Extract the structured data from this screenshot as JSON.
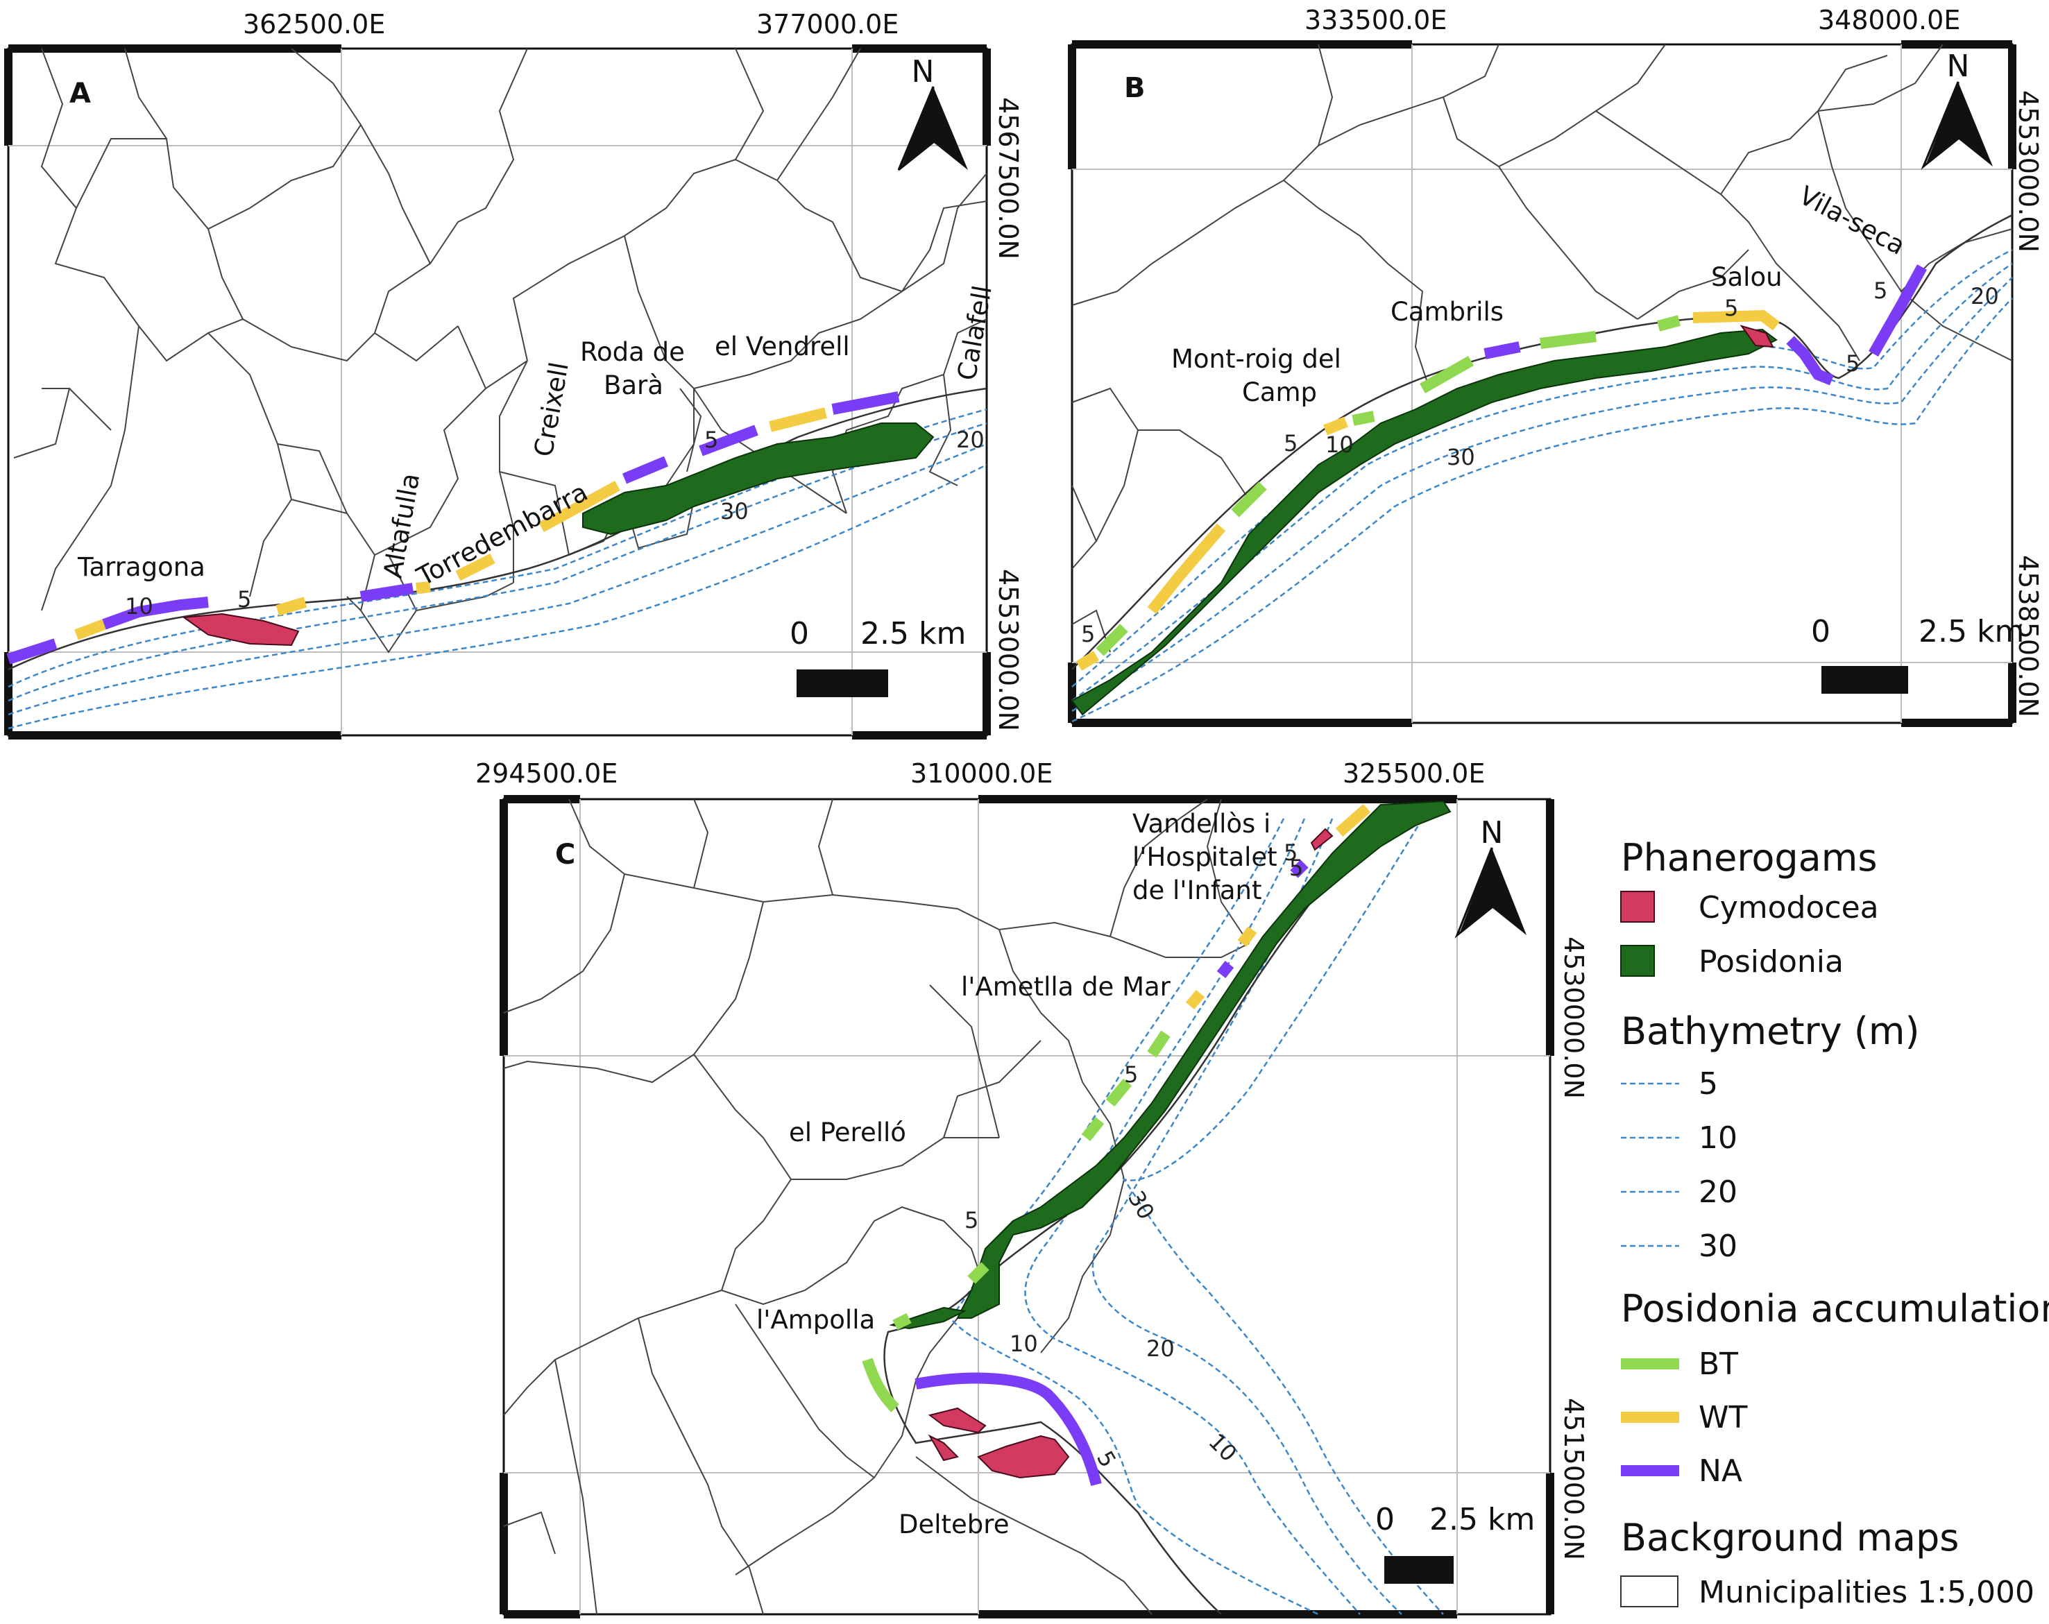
{
  "panels": {
    "A": {
      "letter": "A",
      "x_ticks": [
        "362500.0E",
        "377000.0E"
      ],
      "y_ticks": [
        "4567500.0N",
        "4553000.0N"
      ],
      "places": [
        "Tarragona",
        "Altafulla",
        "Torredembarra",
        "Creixell",
        "Roda de",
        "Barà",
        "el Vendrell",
        "Calafell"
      ],
      "depths": [
        "10",
        "5",
        "5",
        "20",
        "30"
      ],
      "scale": {
        "zero": "0",
        "dist": "2.5 km"
      },
      "north": "N"
    },
    "B": {
      "letter": "B",
      "x_ticks": [
        "333500.0E",
        "348000.0E"
      ],
      "y_ticks": [
        "4553000.0N",
        "4538500.0N"
      ],
      "places": [
        "Mont-roig del",
        "Camp",
        "Cambrils",
        "Salou",
        "Vila-seca"
      ],
      "depths": [
        "5",
        "10",
        "30",
        "5",
        "5",
        "5",
        "20",
        "5"
      ],
      "scale": {
        "zero": "0",
        "dist": "2.5 km"
      },
      "north": "N"
    },
    "C": {
      "letter": "C",
      "x_ticks": [
        "294500.0E",
        "310000.0E",
        "325500.0E"
      ],
      "y_ticks": [
        "4530000.0N",
        "4515000.0N"
      ],
      "places": [
        "Vandellòs i",
        "l'Hospitalet",
        "de l'Infant",
        "l'Ametlla de Mar",
        "el Perelló",
        "l'Ampolla",
        "Deltebre"
      ],
      "depths": [
        "5",
        "5",
        "5",
        "30",
        "10",
        "20",
        "10",
        "5",
        "5"
      ],
      "scale": {
        "zero": "0",
        "dist": "2.5 km"
      },
      "north": "N"
    }
  },
  "legend": {
    "phanerogams_title": "Phanerogams",
    "cymodocea": "Cymodocea",
    "posidonia": "Posidonia",
    "bathymetry_title": "Bathymetry (m)",
    "bath_levels": [
      "5",
      "10",
      "20",
      "30"
    ],
    "accumulation_title": "Posidonia accumulation",
    "bt": "BT",
    "wt": "WT",
    "na": "NA",
    "background_title": "Background maps",
    "municipalities": "Municipalities 1:5,000"
  },
  "colors": {
    "cymodocea": "#d23a5f",
    "posidonia": "#1e6b1e",
    "bathymetry": "#3d87c9",
    "bt": "#8fd850",
    "wt": "#f4cc44",
    "na": "#7b3cf5"
  }
}
